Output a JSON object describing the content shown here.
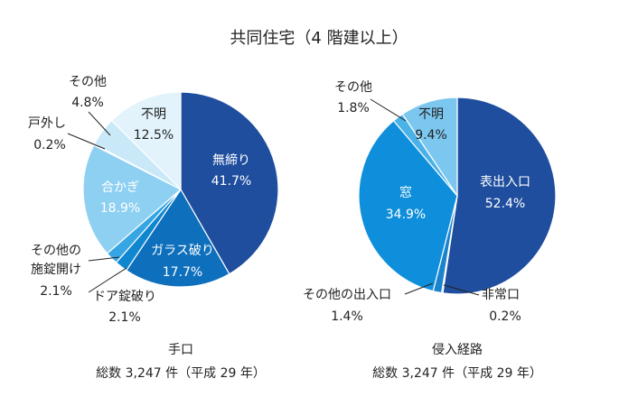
{
  "title": "共同住宅（4 階建以上）",
  "chart_data": [
    {
      "type": "pie",
      "caption": "手口",
      "subcaption": "総数 3,247 件（平成 29 年）",
      "slices": [
        {
          "label": "無締り",
          "value": 41.7,
          "value_label": "41.7%",
          "color": "#1f4e9e"
        },
        {
          "label": "ガラス破り",
          "value": 17.7,
          "value_label": "17.7%",
          "color": "#0e6fbd"
        },
        {
          "label": "ドア錠破り",
          "value": 2.1,
          "value_label": "2.1%",
          "color": "#0f86d0"
        },
        {
          "label": "その他の施錠開け",
          "value": 2.1,
          "value_label": "2.1%",
          "color": "#35a6e3"
        },
        {
          "label": "合かぎ",
          "value": 18.9,
          "value_label": "18.9%",
          "color": "#8ed0f2"
        },
        {
          "label": "戸外し",
          "value": 0.2,
          "value_label": "0.2%",
          "color": "#b6def5"
        },
        {
          "label": "その他",
          "value": 4.8,
          "value_label": "4.8%",
          "color": "#c9e8f8"
        },
        {
          "label": "不明",
          "value": 12.5,
          "value_label": "12.5%",
          "color": "#e2f3fc"
        }
      ]
    },
    {
      "type": "pie",
      "caption": "侵入経路",
      "subcaption": "総数 3,247 件（平成 29 年）",
      "slices": [
        {
          "label": "表出入口",
          "value": 52.4,
          "value_label": "52.4%",
          "color": "#1f4e9e"
        },
        {
          "label": "非常口",
          "value": 0.2,
          "value_label": "0.2%",
          "color": "#0e6fbd"
        },
        {
          "label": "その他の出入口",
          "value": 1.4,
          "value_label": "1.4%",
          "color": "#1a83cc"
        },
        {
          "label": "窓",
          "value": 34.9,
          "value_label": "34.9%",
          "color": "#0f8fdb"
        },
        {
          "label": "その他",
          "value": 1.8,
          "value_label": "1.8%",
          "color": "#4bb2e8"
        },
        {
          "label": "不明",
          "value": 9.4,
          "value_label": "9.4%",
          "color": "#7cc7ef"
        }
      ]
    }
  ]
}
